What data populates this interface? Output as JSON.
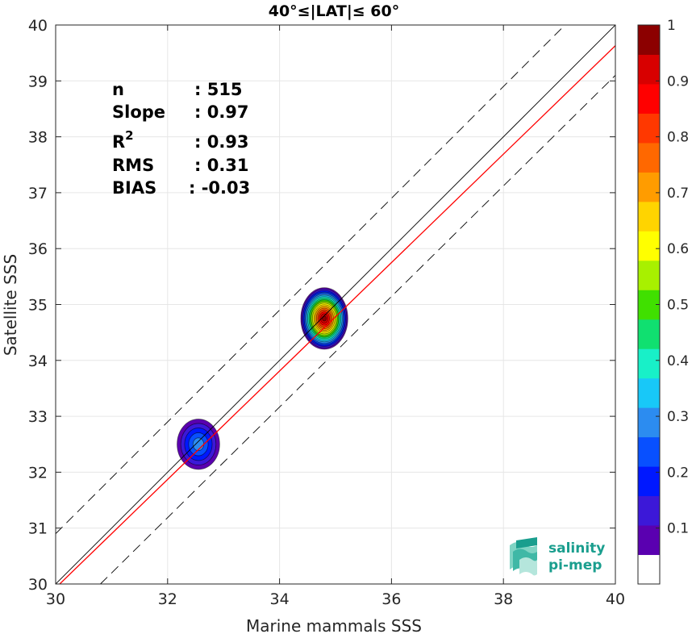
{
  "chart_data": {
    "type": "heatmap",
    "title": "40°≤|LAT|≤ 60°",
    "xlabel": "Marine mammals SSS",
    "ylabel": "Satellite SSS",
    "xlim": [
      30,
      40
    ],
    "ylim": [
      30,
      40
    ],
    "xticks": [
      "30",
      "32",
      "34",
      "36",
      "38",
      "40"
    ],
    "yticks": [
      "30",
      "31",
      "32",
      "33",
      "34",
      "35",
      "36",
      "37",
      "38",
      "39",
      "40"
    ],
    "grid": true,
    "stats": [
      {
        "key": "n",
        "value": ": 515"
      },
      {
        "key": "Slope",
        "value": ": 0.97"
      },
      {
        "key": "R",
        "sup": "2",
        "value": ": 0.93"
      },
      {
        "key": "RMS",
        "value": ": 0.31"
      },
      {
        "key": "BIAS",
        "value": ": -0.03"
      }
    ],
    "lines": [
      {
        "name": "1:1",
        "color": "#000000",
        "style": "solid",
        "points": [
          [
            30,
            30
          ],
          [
            40,
            40
          ]
        ]
      },
      {
        "name": "regression",
        "color": "#ff0000",
        "style": "solid",
        "points": [
          [
            30,
            29.93
          ],
          [
            40,
            39.63
          ]
        ]
      },
      {
        "name": "upper bound",
        "color": "#000000",
        "style": "dashed",
        "points": [
          [
            30,
            30.9
          ],
          [
            39.1,
            40
          ]
        ]
      },
      {
        "name": "lower bound",
        "color": "#000000",
        "style": "dashed",
        "points": [
          [
            30.8,
            30
          ],
          [
            40,
            39.1
          ]
        ]
      }
    ],
    "density_clusters": [
      {
        "center": [
          34.8,
          34.75
        ],
        "peak": 1.0,
        "rx": 0.42,
        "ry": 0.55
      },
      {
        "center": [
          32.55,
          32.5
        ],
        "peak": 0.25,
        "rx": 0.38,
        "ry": 0.45
      }
    ],
    "colorbar": {
      "range": [
        0,
        1
      ],
      "ticks": [
        "0.1",
        "0.2",
        "0.3",
        "0.4",
        "0.5",
        "0.6",
        "0.7",
        "0.8",
        "0.9",
        "1"
      ],
      "levels": [
        "#ffffff",
        "#5a00b0",
        "#3c18d8",
        "#0018ff",
        "#0850ff",
        "#2c8cf0",
        "#18c8f8",
        "#18f0c8",
        "#10e070",
        "#40e000",
        "#a8f000",
        "#ffff00",
        "#ffd400",
        "#ff9c00",
        "#ff6800",
        "#ff3800",
        "#ff0000",
        "#d80000",
        "#8c0000"
      ]
    }
  },
  "logo": {
    "line1": "salinity",
    "line2": "pi-mep"
  }
}
